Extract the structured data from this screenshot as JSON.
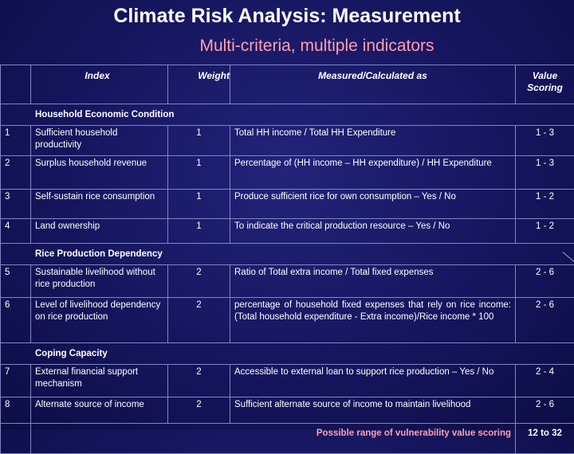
{
  "title": "Climate Risk Analysis: Measurement",
  "subtitle": "Multi-criteria, multiple indicators",
  "headers": {
    "index": "Index",
    "weight": "Weight",
    "measured": "Measured/Calculated as",
    "value": "Value Scoring"
  },
  "sections": [
    {
      "name": "Household Economic Condition",
      "rows": [
        {
          "no": "1",
          "index": "Sufficient household productivity",
          "weight": "1",
          "measured": "Total HH income / Total HH Expenditure",
          "value": "1 - 3"
        },
        {
          "no": "2",
          "index": "Surplus household revenue",
          "weight": "1",
          "measured": "Percentage of (HH income – HH expenditure) / HH Expenditure",
          "value": "1 - 3"
        },
        {
          "no": "3",
          "index": "Self-sustain rice consumption",
          "weight": "1",
          "measured": "Produce sufficient rice for own consumption – Yes / No",
          "value": "1 - 2"
        },
        {
          "no": "4",
          "index": "Land ownership",
          "weight": "1",
          "measured": "To indicate the critical production resource – Yes / No",
          "value": "1 - 2"
        }
      ]
    },
    {
      "name": "Rice Production Dependency",
      "rows": [
        {
          "no": "5",
          "index": "Sustainable livelihood without rice production",
          "weight": "2",
          "measured": "Ratio of Total extra income / Total fixed expenses",
          "value": "2 - 6"
        },
        {
          "no": "6",
          "index": "Level of livelihood dependency on rice production",
          "weight": "2",
          "measured": "percentage of household fixed expenses that rely on rice income: (Total household expenditure - Extra income)/Rice income * 100",
          "value": "2 - 6"
        }
      ]
    },
    {
      "name": "Coping Capacity",
      "rows": [
        {
          "no": "7",
          "index": "External financial support mechanism",
          "weight": "2",
          "measured": "Accessible to external loan to support rice production – Yes / No",
          "value": "2 - 4"
        },
        {
          "no": "8",
          "index": "Alternate source of income",
          "weight": "2",
          "measured": "Sufficient alternate source of income to maintain livelihood",
          "value": "2 - 6"
        }
      ]
    }
  ],
  "footer": {
    "label": "Possible range of vulnerability value scoring",
    "value": "12 to 32"
  },
  "colors": {
    "background": "#15155e",
    "subtitle": "#ff9fb0",
    "grid": "#7f86c4",
    "text": "#ffffff"
  }
}
